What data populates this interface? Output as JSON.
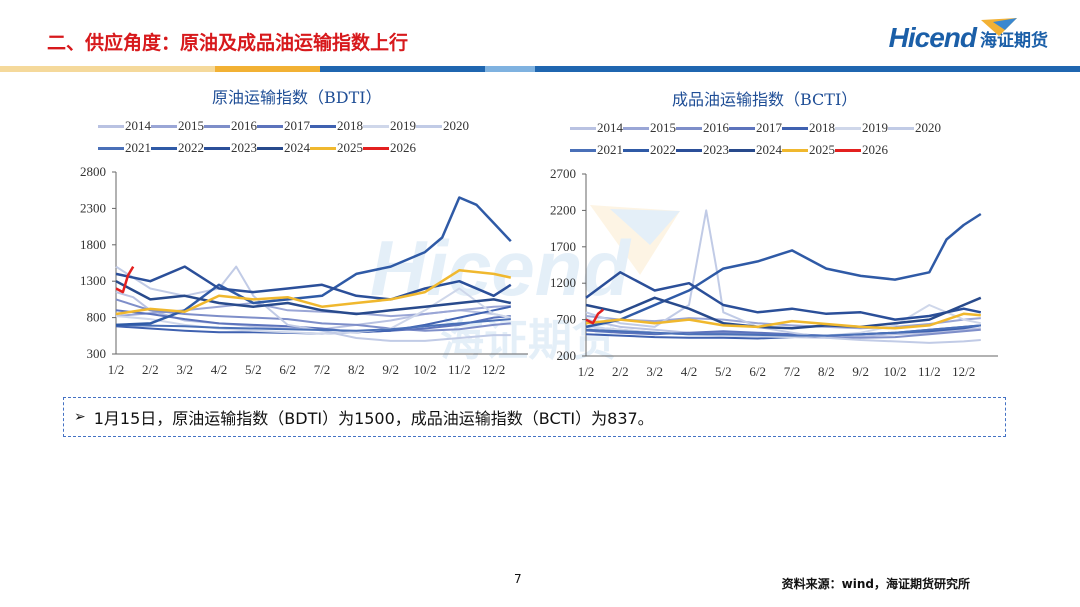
{
  "page": {
    "title": "二、供应角度：原油及成品油运输指数上行",
    "brand_en": "Hicend",
    "brand_cn": "海证期货",
    "note": "1月15日，原油运输指数（BDTI）为1500，成品油运输指数（BCTI）为837。",
    "page_number": "7",
    "source": "资料来源：wind，海证期货研究所",
    "watermark_en": "Hicend",
    "watermark_cn": "海证期货",
    "colors": {
      "title": "#d7191c",
      "brand": "#1b5fa8",
      "note_border": "#4472c4"
    }
  },
  "chart_data": [
    {
      "type": "line",
      "title": "原油运输指数（BDTI）",
      "x_ticks": [
        "1/2",
        "2/2",
        "3/2",
        "4/2",
        "5/2",
        "6/2",
        "7/2",
        "8/2",
        "9/2",
        "10/2",
        "11/2",
        "12/2"
      ],
      "ylim": [
        300,
        2800
      ],
      "y_ticks": [
        300,
        800,
        1300,
        1800,
        2300,
        2800
      ],
      "legend_position": "top",
      "grid": false,
      "series": [
        {
          "name": "2014",
          "color": "#b9c2e2",
          "x": [
            0,
            0.5,
            1,
            2,
            3,
            4,
            5,
            6,
            7,
            8,
            9,
            10,
            11,
            11.5
          ],
          "y": [
            1150,
            1080,
            900,
            760,
            720,
            680,
            650,
            640,
            700,
            760,
            850,
            900,
            850,
            800
          ]
        },
        {
          "name": "2015",
          "color": "#9aa6d6",
          "x": [
            0,
            1,
            2,
            3,
            4,
            5,
            6,
            7,
            8,
            9,
            10,
            11,
            11.5
          ],
          "y": [
            820,
            860,
            900,
            950,
            1000,
            900,
            880,
            860,
            820,
            850,
            900,
            950,
            960
          ]
        },
        {
          "name": "2016",
          "color": "#7e8ec9",
          "x": [
            0,
            1,
            2,
            3,
            4,
            5,
            6,
            7,
            8,
            9,
            10,
            11,
            11.5
          ],
          "y": [
            1050,
            900,
            850,
            820,
            800,
            780,
            720,
            700,
            650,
            620,
            640,
            700,
            720
          ]
        },
        {
          "name": "2017",
          "color": "#5c73bc",
          "x": [
            0,
            1,
            2,
            3,
            4,
            5,
            6,
            7,
            8,
            9,
            10,
            11,
            11.5
          ],
          "y": [
            900,
            850,
            780,
            720,
            700,
            680,
            650,
            600,
            620,
            650,
            700,
            800,
            820
          ]
        },
        {
          "name": "2018",
          "color": "#3f61b0",
          "x": [
            0,
            1,
            2,
            3,
            4,
            5,
            6,
            7,
            8,
            9,
            10,
            11,
            11.5
          ],
          "y": [
            680,
            650,
            620,
            600,
            600,
            590,
            580,
            600,
            620,
            700,
            800,
            900,
            950
          ]
        },
        {
          "name": "2019",
          "color": "#cfd7ea",
          "x": [
            0,
            1,
            2,
            3,
            4,
            5,
            6,
            7,
            8,
            9,
            10,
            11,
            11.5
          ],
          "y": [
            820,
            780,
            700,
            650,
            620,
            600,
            580,
            600,
            650,
            900,
            1200,
            850,
            800
          ]
        },
        {
          "name": "2020",
          "color": "#c1cbe6",
          "x": [
            0,
            1,
            2,
            3,
            3.5,
            4,
            5,
            6,
            7,
            8,
            9,
            10,
            11,
            11.5
          ],
          "y": [
            1500,
            1200,
            1100,
            1200,
            1500,
            1100,
            700,
            620,
            520,
            480,
            480,
            520,
            560,
            560
          ]
        },
        {
          "name": "2021",
          "color": "#4a70b8",
          "x": [
            0,
            1,
            2,
            3,
            4,
            5,
            6,
            7,
            8,
            9,
            10,
            11,
            11.5
          ],
          "y": [
            700,
            690,
            680,
            660,
            650,
            640,
            630,
            620,
            640,
            680,
            720,
            760,
            780
          ]
        },
        {
          "name": "2022",
          "color": "#2f5aa6",
          "x": [
            0,
            1,
            2,
            3,
            4,
            5,
            6,
            7,
            8,
            9,
            9.5,
            10,
            10.5,
            11,
            11.5
          ],
          "y": [
            700,
            720,
            900,
            1250,
            1000,
            1050,
            1100,
            1400,
            1500,
            1700,
            1900,
            2450,
            2350,
            2100,
            1850
          ]
        },
        {
          "name": "2023",
          "color": "#2b4f99",
          "x": [
            0,
            1,
            2,
            3,
            4,
            5,
            6,
            7,
            8,
            9,
            10,
            11,
            11.5
          ],
          "y": [
            1400,
            1300,
            1500,
            1200,
            1150,
            1200,
            1250,
            1100,
            1050,
            1200,
            1300,
            1100,
            1250
          ]
        },
        {
          "name": "2024",
          "color": "#284a8c",
          "x": [
            0,
            1,
            2,
            3,
            4,
            5,
            6,
            7,
            8,
            9,
            10,
            11,
            11.5
          ],
          "y": [
            1300,
            1050,
            1100,
            1000,
            950,
            1000,
            900,
            850,
            900,
            950,
            1000,
            1050,
            1000
          ]
        },
        {
          "name": "2025",
          "color": "#f0b82e",
          "x": [
            0,
            1,
            2,
            3,
            4,
            5,
            6,
            7,
            8,
            9,
            10,
            11,
            11.5
          ],
          "y": [
            850,
            920,
            880,
            1100,
            1050,
            1080,
            950,
            1000,
            1050,
            1150,
            1450,
            1400,
            1350
          ]
        },
        {
          "name": "2026",
          "color": "#e3201f",
          "x": [
            0,
            0.2,
            0.35,
            0.5
          ],
          "y": [
            1200,
            1150,
            1380,
            1500
          ]
        }
      ]
    },
    {
      "type": "line",
      "title": "成品油运输指数（BCTI）",
      "x_ticks": [
        "1/2",
        "2/2",
        "3/2",
        "4/2",
        "5/2",
        "6/2",
        "7/2",
        "8/2",
        "9/2",
        "10/2",
        "11/2",
        "12/2"
      ],
      "ylim": [
        200,
        2700
      ],
      "y_ticks": [
        200,
        700,
        1200,
        1700,
        2200,
        2700
      ],
      "legend_position": "top",
      "grid": false,
      "series": [
        {
          "name": "2014",
          "color": "#b9c2e2",
          "x": [
            0,
            1,
            2,
            3,
            4,
            5,
            6,
            7,
            8,
            9,
            10,
            11,
            11.5
          ],
          "y": [
            700,
            600,
            560,
            520,
            500,
            480,
            460,
            450,
            470,
            500,
            520,
            560,
            580
          ]
        },
        {
          "name": "2015",
          "color": "#9aa6d6",
          "x": [
            0,
            1,
            2,
            3,
            4,
            5,
            6,
            7,
            8,
            9,
            10,
            11,
            11.5
          ],
          "y": [
            750,
            700,
            680,
            720,
            700,
            650,
            620,
            600,
            580,
            600,
            640,
            700,
            720
          ]
        },
        {
          "name": "2016",
          "color": "#7e8ec9",
          "x": [
            0,
            1,
            2,
            3,
            4,
            5,
            6,
            7,
            8,
            9,
            10,
            11,
            11.5
          ],
          "y": [
            600,
            560,
            520,
            500,
            520,
            500,
            480,
            460,
            450,
            460,
            500,
            540,
            560
          ]
        },
        {
          "name": "2017",
          "color": "#5c73bc",
          "x": [
            0,
            1,
            2,
            3,
            4,
            5,
            6,
            7,
            8,
            9,
            10,
            11,
            11.5
          ],
          "y": [
            550,
            520,
            500,
            520,
            540,
            520,
            500,
            480,
            500,
            520,
            560,
            600,
            620
          ]
        },
        {
          "name": "2018",
          "color": "#3f61b0",
          "x": [
            0,
            1,
            2,
            3,
            4,
            5,
            6,
            7,
            8,
            9,
            10,
            11,
            11.5
          ],
          "y": [
            500,
            480,
            460,
            450,
            450,
            440,
            460,
            480,
            500,
            520,
            540,
            580,
            620
          ]
        },
        {
          "name": "2019",
          "color": "#cfd7ea",
          "x": [
            0,
            1,
            2,
            3,
            4,
            5,
            6,
            7,
            8,
            9,
            10,
            11,
            11.5
          ],
          "y": [
            600,
            560,
            520,
            500,
            480,
            470,
            460,
            480,
            520,
            620,
            900,
            700,
            650
          ]
        },
        {
          "name": "2020",
          "color": "#c1cbe6",
          "x": [
            0,
            1,
            2,
            3,
            3.5,
            3.8,
            4,
            5,
            6,
            7,
            8,
            9,
            10,
            11,
            11.5
          ],
          "y": [
            800,
            650,
            600,
            900,
            2200,
            1400,
            800,
            600,
            520,
            450,
            420,
            400,
            380,
            400,
            420
          ]
        },
        {
          "name": "2021",
          "color": "#4a70b8",
          "x": [
            0,
            1,
            2,
            3,
            4,
            5,
            6,
            7,
            8,
            9,
            10,
            11,
            11.5
          ],
          "y": [
            560,
            540,
            520,
            500,
            500,
            490,
            480,
            480,
            500,
            520,
            560,
            600,
            620
          ]
        },
        {
          "name": "2022",
          "color": "#2f5aa6",
          "x": [
            0,
            1,
            2,
            3,
            4,
            5,
            6,
            7,
            8,
            9,
            10,
            10.5,
            11,
            11.5
          ],
          "y": [
            600,
            700,
            900,
            1100,
            1400,
            1500,
            1650,
            1400,
            1300,
            1250,
            1350,
            1800,
            2000,
            2150
          ]
        },
        {
          "name": "2023",
          "color": "#2b4f99",
          "x": [
            0,
            1,
            2,
            3,
            4,
            5,
            6,
            7,
            8,
            9,
            10,
            11,
            11.5
          ],
          "y": [
            1000,
            1350,
            1100,
            1200,
            900,
            800,
            850,
            780,
            800,
            700,
            750,
            850,
            800
          ]
        },
        {
          "name": "2024",
          "color": "#284a8c",
          "x": [
            0,
            1,
            2,
            3,
            4,
            5,
            6,
            7,
            8,
            9,
            10,
            11,
            11.5
          ],
          "y": [
            900,
            800,
            1000,
            850,
            650,
            600,
            580,
            620,
            600,
            650,
            700,
            900,
            1000
          ]
        },
        {
          "name": "2025",
          "color": "#f0b82e",
          "x": [
            0,
            1,
            2,
            3,
            4,
            5,
            6,
            7,
            8,
            9,
            10,
            11,
            11.5
          ],
          "y": [
            650,
            700,
            650,
            700,
            620,
            600,
            680,
            640,
            600,
            580,
            620,
            780,
            760
          ]
        },
        {
          "name": "2026",
          "color": "#e3201f",
          "x": [
            0,
            0.2,
            0.35,
            0.5
          ],
          "y": [
            700,
            650,
            780,
            837
          ]
        }
      ]
    }
  ]
}
